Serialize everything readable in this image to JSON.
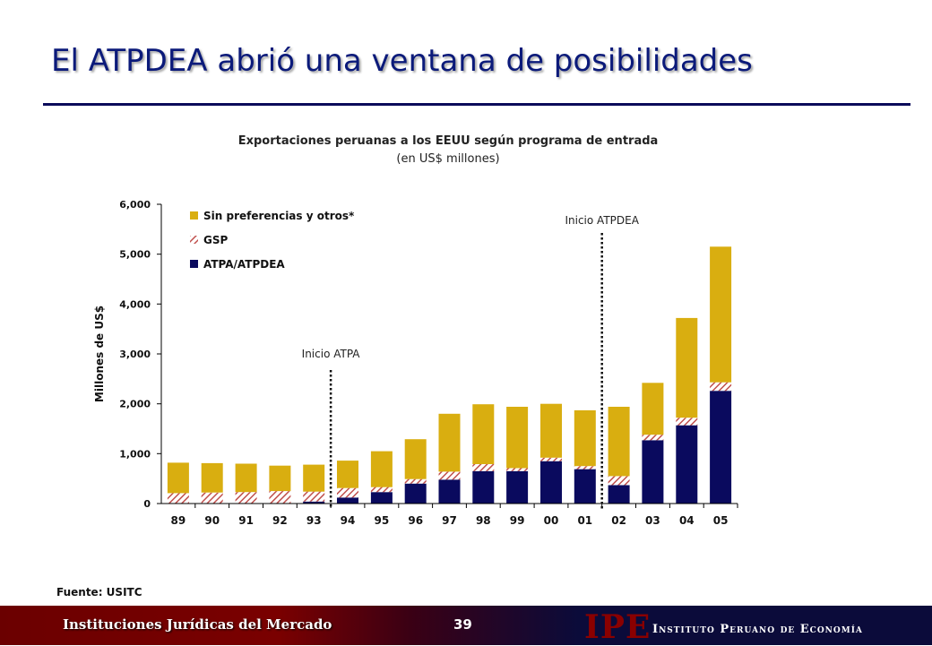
{
  "slide": {
    "title": "El ATPDEA abrió una ventana de posibilidades",
    "source": "Fuente: USITC",
    "footer_left": "Instituciones Jurídicas del Mercado",
    "page_number": "39",
    "logo": "IPE",
    "institute": "Instituto Peruano de Economía"
  },
  "colors": {
    "sin_preferencias": "#D9AE10",
    "gsp": "#C0504D",
    "atpa": "#0A0A5E",
    "title": "#0b1a7a"
  },
  "chart_data": {
    "type": "bar",
    "stacked": true,
    "title": "Exportaciones peruanas a los EEUU según programa de entrada",
    "subtitle": "(en US$ millones)",
    "xlabel": "",
    "ylabel": "Millones de US$",
    "ylim": [
      0,
      6000
    ],
    "yticks": [
      "0",
      "1,000",
      "2,000",
      "3,000",
      "4,000",
      "5,000",
      "6,000"
    ],
    "legend_position": "top-left",
    "categories": [
      "89",
      "90",
      "91",
      "92",
      "93",
      "94",
      "95",
      "96",
      "97",
      "98",
      "99",
      "00",
      "01",
      "02",
      "03",
      "04",
      "05"
    ],
    "series": [
      {
        "name": "ATPA/ATPDEA",
        "values": [
          0,
          0,
          0,
          0,
          40,
          120,
          230,
          400,
          480,
          650,
          650,
          850,
          690,
          370,
          1270,
          1570,
          2260
        ]
      },
      {
        "name": "GSP",
        "values": [
          210,
          220,
          230,
          250,
          200,
          190,
          100,
          90,
          160,
          140,
          60,
          70,
          60,
          180,
          110,
          150,
          170
        ]
      },
      {
        "name": "Sin preferencias y otros*",
        "values": [
          610,
          590,
          570,
          510,
          540,
          550,
          720,
          800,
          1160,
          1200,
          1230,
          1080,
          1120,
          1390,
          1040,
          2000,
          2720
        ]
      }
    ],
    "annotations": [
      {
        "text": "Inicio ATPA",
        "after_category": "93"
      },
      {
        "text": "Inicio ATPDEA",
        "after_category": "01"
      }
    ],
    "grid": false
  }
}
